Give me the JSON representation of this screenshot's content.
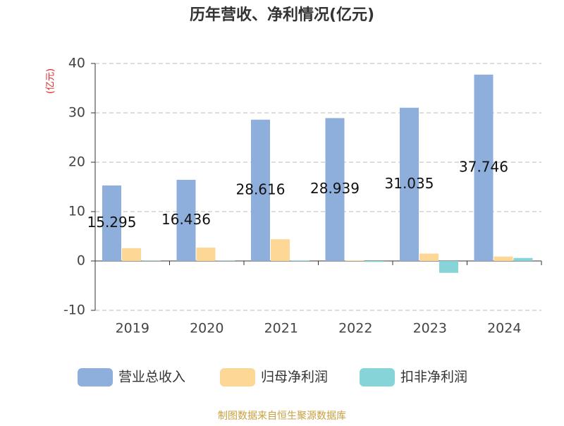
{
  "chart_data": {
    "type": "bar",
    "title": "历年营收、净利情况(亿元)",
    "y_label": "(亿元)",
    "source": "制图数据来自恒生聚源数据库",
    "categories": [
      "2019",
      "2020",
      "2021",
      "2022",
      "2023",
      "2024"
    ],
    "series": [
      {
        "name": "营业总收入",
        "color": "#8eaedb",
        "values": [
          15.295,
          16.436,
          28.616,
          28.939,
          31.035,
          37.746
        ]
      },
      {
        "name": "归母净利润",
        "color": "#fdd795",
        "values": [
          2.6,
          2.7,
          4.4,
          0.1,
          1.5,
          0.9
        ]
      },
      {
        "name": "扣非净利润",
        "color": "#86d4d8",
        "values": [
          0.05,
          0.05,
          0.1,
          -0.2,
          -2.4,
          0.6
        ]
      }
    ],
    "ylim": [
      -10,
      40
    ],
    "yticks": [
      -10,
      0,
      10,
      20,
      30,
      40
    ],
    "grid": true,
    "labeled_series": [
      0
    ]
  }
}
